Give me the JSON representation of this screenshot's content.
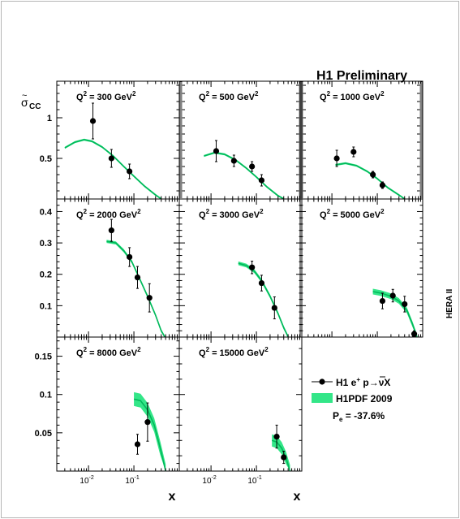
{
  "header": {
    "title": "H1 Preliminary",
    "side_label": "HERA II"
  },
  "axis": {
    "ylabel_main": "σ",
    "ylabel_accent": "~",
    "ylabel_sub": "CC",
    "xlabel": "x"
  },
  "legend": {
    "data_label_prefix": "H1 e",
    "data_label_sup": "+",
    "data_label_mid": " p→",
    "data_label_nubar": "ν",
    "data_label_end": "X",
    "band_label": "H1PDF 2009",
    "pe_label_main": "P",
    "pe_label_sub": "e",
    "pe_label_rest": " = -37.6%"
  },
  "colors": {
    "band": "#33e688",
    "line": "#00b85a",
    "points": "#000000",
    "frame": "#000000"
  },
  "chart_data": {
    "type": "scatter",
    "x_scale": "log",
    "panels": [
      {
        "label_q": "Q",
        "label_sup": "2",
        "label_val": " = 300 GeV",
        "label_sup2": "2",
        "row": 0,
        "col": 0,
        "xlim": [
          0.002,
          1
        ],
        "ylim": [
          0,
          1.45
        ],
        "yticks": [
          {
            "v": 0.5,
            "t": "0.5"
          },
          {
            "v": 1,
            "t": "1"
          }
        ],
        "xticks": [],
        "points": [
          {
            "x": 0.0125,
            "y": 0.96,
            "err": 0.22
          },
          {
            "x": 0.032,
            "y": 0.5,
            "err": 0.11
          },
          {
            "x": 0.08,
            "y": 0.34,
            "err": 0.09
          }
        ],
        "curve": [
          [
            0.003,
            0.63
          ],
          [
            0.005,
            0.7
          ],
          [
            0.008,
            0.73
          ],
          [
            0.012,
            0.71
          ],
          [
            0.02,
            0.64
          ],
          [
            0.035,
            0.53
          ],
          [
            0.06,
            0.4
          ],
          [
            0.1,
            0.28
          ],
          [
            0.17,
            0.16
          ],
          [
            0.3,
            0.05
          ],
          [
            0.4,
            0.0
          ]
        ],
        "band_half": 0.012
      },
      {
        "label_q": "Q",
        "label_sup": "2",
        "label_val": " = 500 GeV",
        "label_sup2": "2",
        "row": 0,
        "col": 1,
        "xlim": [
          0.002,
          1
        ],
        "ylim": [
          0,
          1.45
        ],
        "yticks": [],
        "xticks": [],
        "points": [
          {
            "x": 0.013,
            "y": 0.59,
            "err": 0.13
          },
          {
            "x": 0.032,
            "y": 0.47,
            "err": 0.07
          },
          {
            "x": 0.08,
            "y": 0.4,
            "err": 0.06
          },
          {
            "x": 0.13,
            "y": 0.23,
            "err": 0.07
          }
        ],
        "curve": [
          [
            0.007,
            0.53
          ],
          [
            0.012,
            0.57
          ],
          [
            0.02,
            0.55
          ],
          [
            0.035,
            0.48
          ],
          [
            0.06,
            0.38
          ],
          [
            0.1,
            0.27
          ],
          [
            0.17,
            0.15
          ],
          [
            0.3,
            0.04
          ],
          [
            0.4,
            0.0
          ]
        ],
        "band_half": 0.012
      },
      {
        "label_q": "Q",
        "label_sup": "2",
        "label_val": " = 1000 GeV",
        "label_sup2": "2",
        "row": 0,
        "col": 2,
        "xlim": [
          0.002,
          1
        ],
        "ylim": [
          0,
          1.45
        ],
        "yticks": [],
        "xticks": [],
        "points": [
          {
            "x": 0.0128,
            "y": 0.5,
            "err": 0.1
          },
          {
            "x": 0.03,
            "y": 0.58,
            "err": 0.06
          },
          {
            "x": 0.08,
            "y": 0.3,
            "err": 0.04
          },
          {
            "x": 0.13,
            "y": 0.17,
            "err": 0.04
          }
        ],
        "curve": [
          [
            0.012,
            0.42
          ],
          [
            0.02,
            0.44
          ],
          [
            0.035,
            0.41
          ],
          [
            0.06,
            0.34
          ],
          [
            0.1,
            0.25
          ],
          [
            0.17,
            0.14
          ],
          [
            0.28,
            0.06
          ],
          [
            0.4,
            0.0
          ]
        ],
        "band_half": 0.012
      },
      {
        "label_q": "Q",
        "label_sup": "2",
        "label_val": " = 2000 GeV",
        "label_sup2": "2",
        "row": 1,
        "col": 0,
        "xlim": [
          0.002,
          1
        ],
        "ylim": [
          0,
          0.44
        ],
        "yticks": [
          {
            "v": 0.1,
            "t": "0.1"
          },
          {
            "v": 0.2,
            "t": "0.2"
          },
          {
            "v": 0.3,
            "t": "0.3"
          },
          {
            "v": 0.4,
            "t": "0.4"
          }
        ],
        "xticks": [],
        "points": [
          {
            "x": 0.032,
            "y": 0.34,
            "err": 0.035
          },
          {
            "x": 0.08,
            "y": 0.255,
            "err": 0.03
          },
          {
            "x": 0.12,
            "y": 0.19,
            "err": 0.035
          },
          {
            "x": 0.22,
            "y": 0.125,
            "err": 0.045
          }
        ],
        "curve": [
          [
            0.025,
            0.305
          ],
          [
            0.04,
            0.3
          ],
          [
            0.06,
            0.275
          ],
          [
            0.09,
            0.24
          ],
          [
            0.13,
            0.19
          ],
          [
            0.2,
            0.13
          ],
          [
            0.3,
            0.07
          ],
          [
            0.4,
            0.02
          ],
          [
            0.48,
            0.0
          ]
        ],
        "band_half": 0.005
      },
      {
        "label_q": "Q",
        "label_sup": "2",
        "label_val": " = 3000 GeV",
        "label_sup2": "2",
        "row": 1,
        "col": 1,
        "xlim": [
          0.002,
          1
        ],
        "ylim": [
          0,
          0.44
        ],
        "yticks": [],
        "xticks": [],
        "points": [
          {
            "x": 0.08,
            "y": 0.222,
            "err": 0.02
          },
          {
            "x": 0.13,
            "y": 0.172,
            "err": 0.025
          },
          {
            "x": 0.25,
            "y": 0.093,
            "err": 0.035
          }
        ],
        "curve": [
          [
            0.04,
            0.235
          ],
          [
            0.06,
            0.228
          ],
          [
            0.09,
            0.21
          ],
          [
            0.13,
            0.18
          ],
          [
            0.2,
            0.13
          ],
          [
            0.3,
            0.075
          ],
          [
            0.4,
            0.03
          ],
          [
            0.5,
            0.0
          ]
        ],
        "band_half": 0.006
      },
      {
        "label_q": "Q",
        "label_sup": "2",
        "label_val": " = 5000 GeV",
        "label_sup2": "2",
        "row": 1,
        "col": 2,
        "xlim": [
          0.002,
          1
        ],
        "ylim": [
          0,
          0.44
        ],
        "yticks": [],
        "xticks": [],
        "points": [
          {
            "x": 0.13,
            "y": 0.115,
            "err": 0.025
          },
          {
            "x": 0.22,
            "y": 0.132,
            "err": 0.02
          },
          {
            "x": 0.4,
            "y": 0.105,
            "err": 0.025
          },
          {
            "x": 0.65,
            "y": 0.01,
            "err": 0.01
          }
        ],
        "curve": [
          [
            0.08,
            0.145
          ],
          [
            0.12,
            0.14
          ],
          [
            0.2,
            0.13
          ],
          [
            0.3,
            0.115
          ],
          [
            0.45,
            0.085
          ],
          [
            0.6,
            0.04
          ],
          [
            0.75,
            0.0
          ]
        ],
        "band_half": 0.009
      },
      {
        "label_q": "Q",
        "label_sup": "2",
        "label_val": " = 8000 GeV",
        "label_sup2": "2",
        "row": 2,
        "col": 0,
        "xlim": [
          0.002,
          1
        ],
        "ylim": [
          0,
          0.175
        ],
        "yticks": [
          {
            "v": 0.05,
            "t": "0.05"
          },
          {
            "v": 0.1,
            "t": "0.1"
          },
          {
            "v": 0.15,
            "t": "0.15"
          }
        ],
        "xticks": [
          {
            "v": 0.01,
            "m": "10",
            "e": "-2"
          },
          {
            "v": 0.1,
            "m": "10",
            "e": "-1"
          }
        ],
        "points": [
          {
            "x": 0.12,
            "y": 0.035,
            "err": 0.013
          },
          {
            "x": 0.2,
            "y": 0.064,
            "err": 0.025
          }
        ],
        "curve": [
          [
            0.1,
            0.094
          ],
          [
            0.14,
            0.092
          ],
          [
            0.2,
            0.08
          ],
          [
            0.28,
            0.06
          ],
          [
            0.38,
            0.03
          ],
          [
            0.5,
            0.0
          ]
        ],
        "band_half": 0.009
      },
      {
        "label_q": "Q",
        "label_sup": "2",
        "label_val": " = 15000 GeV",
        "label_sup2": "2",
        "row": 2,
        "col": 1,
        "xlim": [
          0.002,
          1
        ],
        "ylim": [
          0,
          0.175
        ],
        "yticks": [],
        "xticks": [
          {
            "v": 0.01,
            "m": "10",
            "e": "-2"
          },
          {
            "v": 0.1,
            "m": "10",
            "e": "-1"
          }
        ],
        "points": [
          {
            "x": 0.28,
            "y": 0.045,
            "err": 0.015
          },
          {
            "x": 0.4,
            "y": 0.018,
            "err": 0.008
          }
        ],
        "curve": [
          [
            0.22,
            0.04
          ],
          [
            0.28,
            0.038
          ],
          [
            0.36,
            0.03
          ],
          [
            0.45,
            0.017
          ],
          [
            0.55,
            0.0
          ]
        ],
        "band_half": 0.008
      }
    ]
  }
}
